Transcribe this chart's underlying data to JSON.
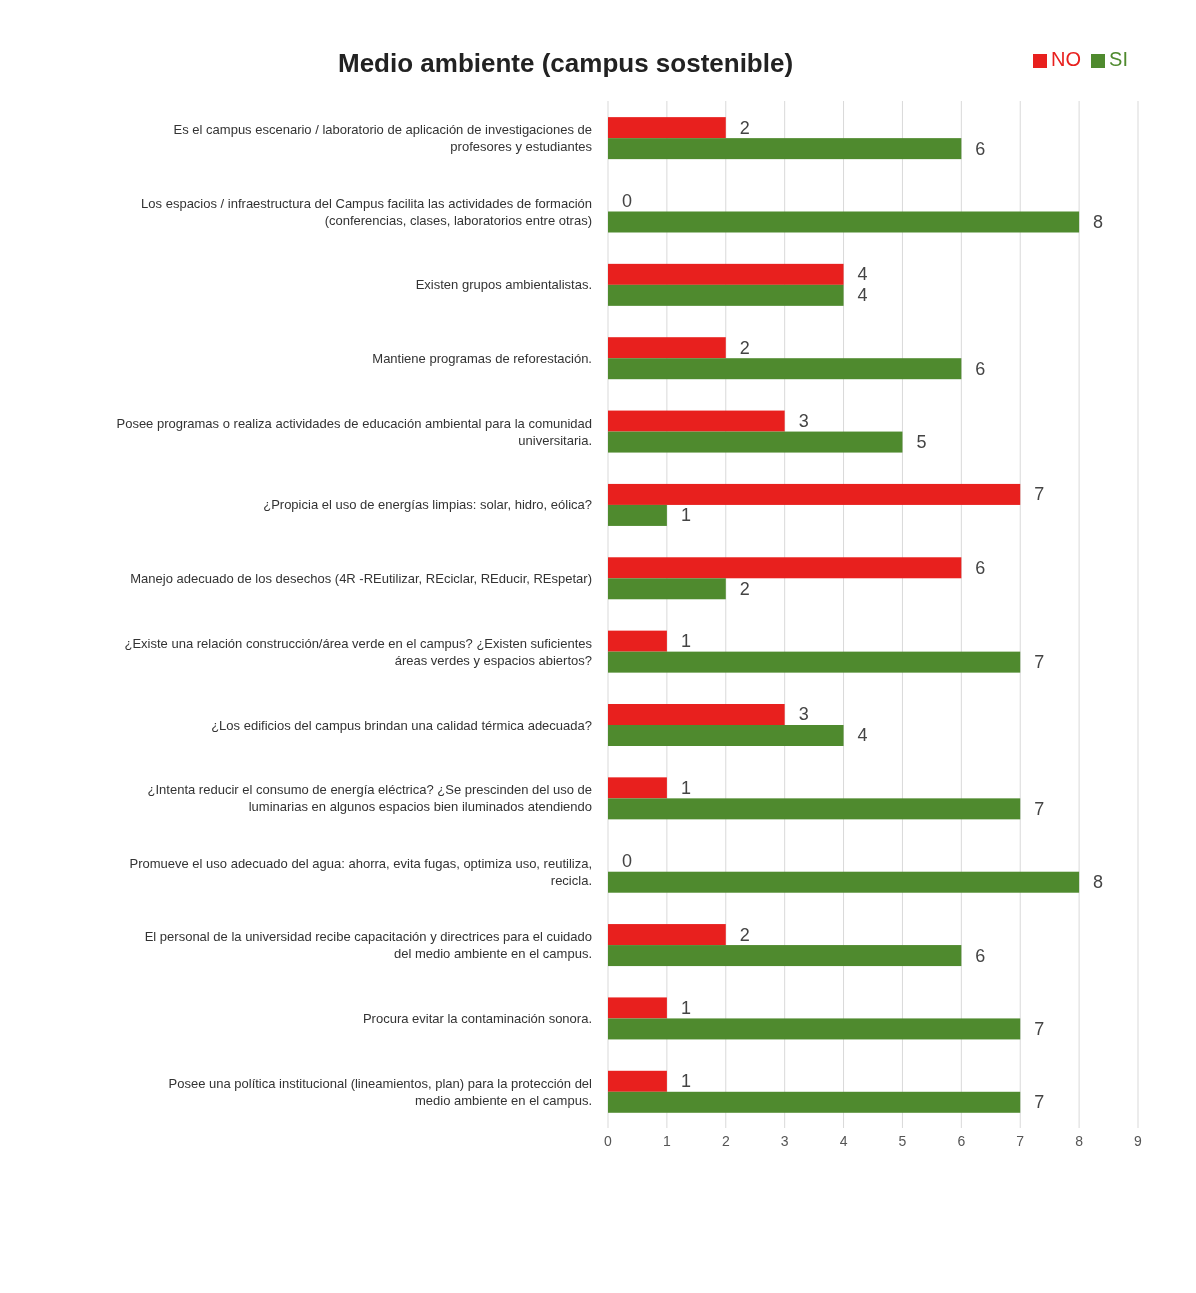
{
  "chart_data": {
    "type": "bar",
    "orientation": "horizontal",
    "title": "Medio ambiente (campus sostenible)",
    "categories": [
      "Es el campus escenario / laboratorio de aplicación de investigaciones de profesores y estudiantes",
      "Los espacios / infraestructura del Campus facilita las actividades de formación (conferencias, clases, laboratorios entre otras)",
      "Existen grupos ambientalistas.",
      "Mantiene programas de reforestación.",
      "Posee programas o realiza actividades de educación ambiental para la comunidad universitaria.",
      "¿Propicia el uso de energías limpias: solar, hidro, eólica?",
      "Manejo adecuado de los desechos (4R -REutilizar, REciclar, REducir, REspetar)",
      "¿Existe una relación construcción/área verde en el campus? ¿Existen suficientes áreas verdes y espacios abiertos?",
      "¿Los edificios del campus brindan una calidad térmica adecuada?",
      "¿Intenta reducir el consumo de energía eléctrica? ¿Se prescinden del uso de luminarias en algunos espacios bien iluminados atendiendo",
      "Promueve el uso adecuado del agua: ahorra, evita fugas, optimiza uso, reutiliza, recicla.",
      "El personal de la universidad recibe capacitación y directrices para el cuidado del medio ambiente en el campus.",
      "Procura evitar la contaminación sonora.",
      "Posee una política institucional (lineamientos, plan) para la protección del medio ambiente en el campus."
    ],
    "series": [
      {
        "name": "NO",
        "color": "#e8201e",
        "values": [
          2,
          0,
          4,
          2,
          3,
          7,
          6,
          1,
          3,
          1,
          0,
          2,
          1,
          1
        ]
      },
      {
        "name": "SI",
        "color": "#4f8a2e",
        "values": [
          6,
          8,
          4,
          6,
          5,
          1,
          2,
          7,
          4,
          7,
          8,
          6,
          7,
          7
        ]
      }
    ],
    "xlim": [
      0,
      9
    ],
    "xticks": [
      0,
      1,
      2,
      3,
      4,
      5,
      6,
      7,
      8,
      9
    ],
    "grid": "x",
    "legend": "top right",
    "data_labels": true
  }
}
